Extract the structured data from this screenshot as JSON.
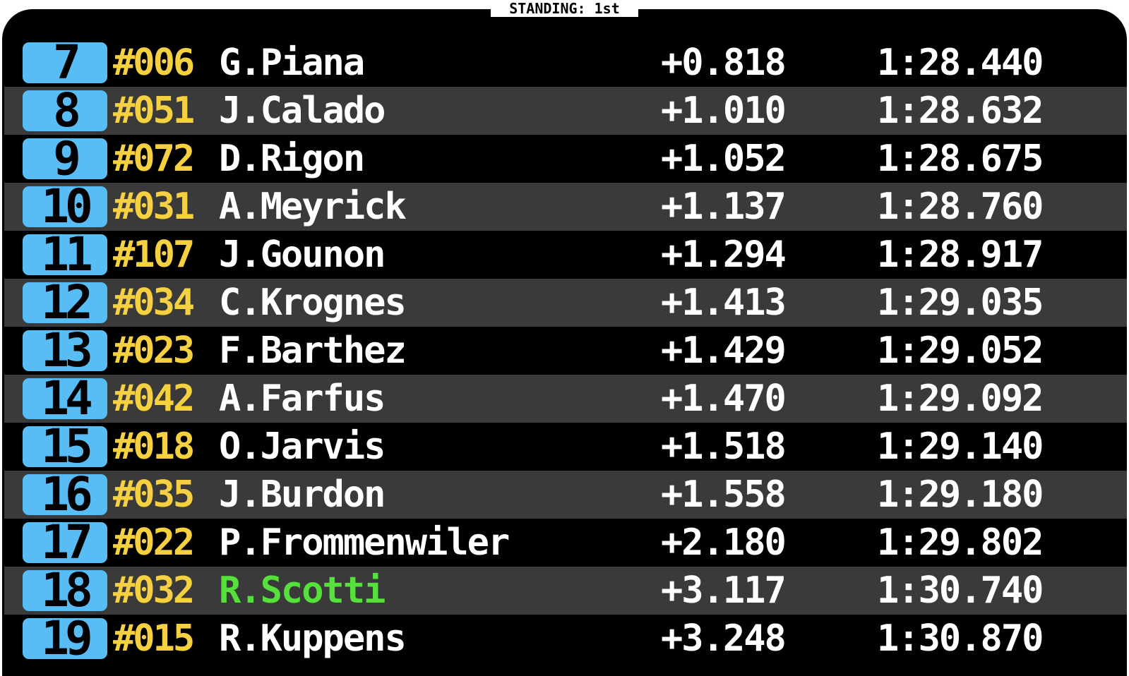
{
  "header": {
    "title": "STANDING: 1st"
  },
  "colors": {
    "background": "#000000",
    "alt_row": "#3a3a3a",
    "position_badge": "#58bdf5",
    "car_number": "#f5d142",
    "driver_name": "#ffffff",
    "highlight_driver": "#56e03c",
    "border": "#ffffff"
  },
  "standings": [
    {
      "position": "7",
      "car_number": "#006",
      "driver": "G.Piana",
      "gap": "+0.818",
      "lap_time": "1:28.440",
      "highlight": false
    },
    {
      "position": "8",
      "car_number": "#051",
      "driver": "J.Calado",
      "gap": "+1.010",
      "lap_time": "1:28.632",
      "highlight": false
    },
    {
      "position": "9",
      "car_number": "#072",
      "driver": "D.Rigon",
      "gap": "+1.052",
      "lap_time": "1:28.675",
      "highlight": false
    },
    {
      "position": "10",
      "car_number": "#031",
      "driver": "A.Meyrick",
      "gap": "+1.137",
      "lap_time": "1:28.760",
      "highlight": false
    },
    {
      "position": "11",
      "car_number": "#107",
      "driver": "J.Gounon",
      "gap": "+1.294",
      "lap_time": "1:28.917",
      "highlight": false
    },
    {
      "position": "12",
      "car_number": "#034",
      "driver": "C.Krognes",
      "gap": "+1.413",
      "lap_time": "1:29.035",
      "highlight": false
    },
    {
      "position": "13",
      "car_number": "#023",
      "driver": "F.Barthez",
      "gap": "+1.429",
      "lap_time": "1:29.052",
      "highlight": false
    },
    {
      "position": "14",
      "car_number": "#042",
      "driver": "A.Farfus",
      "gap": "+1.470",
      "lap_time": "1:29.092",
      "highlight": false
    },
    {
      "position": "15",
      "car_number": "#018",
      "driver": "O.Jarvis",
      "gap": "+1.518",
      "lap_time": "1:29.140",
      "highlight": false
    },
    {
      "position": "16",
      "car_number": "#035",
      "driver": "J.Burdon",
      "gap": "+1.558",
      "lap_time": "1:29.180",
      "highlight": false
    },
    {
      "position": "17",
      "car_number": "#022",
      "driver": "P.Frommenwiler",
      "gap": "+2.180",
      "lap_time": "1:29.802",
      "highlight": false
    },
    {
      "position": "18",
      "car_number": "#032",
      "driver": "R.Scotti",
      "gap": "+3.117",
      "lap_time": "1:30.740",
      "highlight": true
    },
    {
      "position": "19",
      "car_number": "#015",
      "driver": "R.Kuppens",
      "gap": "+3.248",
      "lap_time": "1:30.870",
      "highlight": false
    }
  ]
}
